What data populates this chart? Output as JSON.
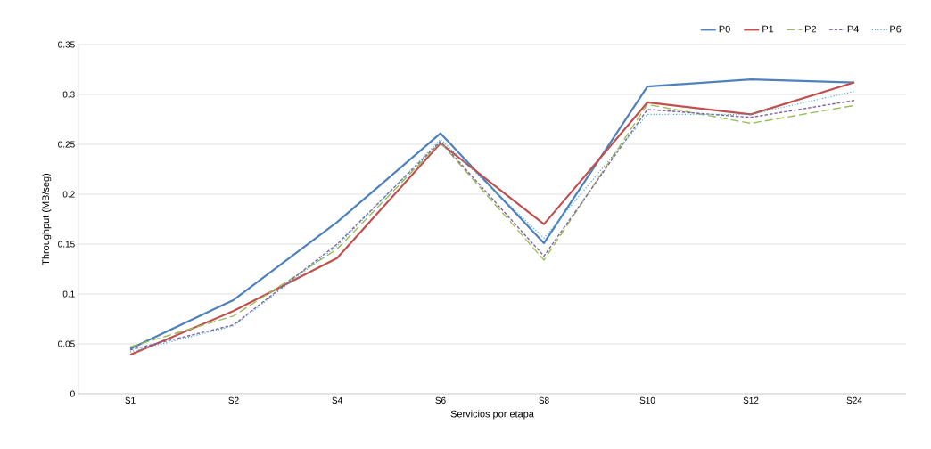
{
  "chart_data": {
    "type": "line",
    "xlabel": "Servicios por etapa",
    "ylabel": "Throughput (MB/seg)",
    "categories": [
      "S1",
      "S2",
      "S4",
      "S6",
      "S8",
      "S10",
      "S12",
      "S24"
    ],
    "ylim": [
      0,
      0.35
    ],
    "yticks": [
      0,
      0.05,
      0.1,
      0.15,
      0.2,
      0.25,
      0.3,
      0.35
    ],
    "grid": "y",
    "legend": "top right",
    "marker": "none",
    "series": [
      {
        "name": "P0",
        "color": "#4f81bd",
        "line_style": "solid",
        "values": [
          0.045,
          0.094,
          0.172,
          0.261,
          0.151,
          0.308,
          0.315,
          0.312
        ]
      },
      {
        "name": "P1",
        "color": "#c0504d",
        "line_style": "solid",
        "values": [
          0.039,
          0.083,
          0.136,
          0.251,
          0.17,
          0.292,
          0.28,
          0.312
        ]
      },
      {
        "name": "P2",
        "color": "#9bbb59",
        "line_style": "long dashed",
        "values": [
          0.047,
          0.078,
          0.145,
          0.252,
          0.134,
          0.29,
          0.271,
          0.289
        ]
      },
      {
        "name": "P4",
        "color": "#8064a2",
        "line_style": "dashed",
        "values": [
          0.044,
          0.069,
          0.15,
          0.253,
          0.138,
          0.285,
          0.277,
          0.294
        ]
      },
      {
        "name": "P6",
        "color": "#4bacc6",
        "line_style": "dotted",
        "values": [
          0.042,
          0.068,
          0.148,
          0.255,
          0.156,
          0.28,
          0.28,
          0.303
        ]
      }
    ]
  }
}
